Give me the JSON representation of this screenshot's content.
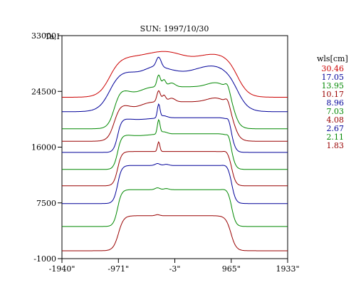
{
  "chart_data": {
    "type": "line",
    "title": "SUN: 1997/10/30",
    "ylabel": "Ta,I",
    "xlabel": "",
    "xlim": [
      -1940,
      1933
    ],
    "ylim": [
      -1000,
      33000
    ],
    "x_tick_values": [
      -1940,
      -971,
      -3,
      965,
      1933
    ],
    "x_tick_labels": [
      "-1940\"",
      "-971\"",
      "-3\"",
      "965\"",
      "1933\""
    ],
    "y_tick_values": [
      -1000,
      7500,
      16000,
      24500,
      33000
    ],
    "y_tick_labels": [
      "-1000",
      "7500",
      "16000",
      "24500",
      "33000"
    ],
    "legend_title": "wls[cm]",
    "legend_placement": "right",
    "series": [
      {
        "name": "30.46",
        "color": "#cc0000",
        "base": 23600,
        "amp": 7000,
        "profile": "wide"
      },
      {
        "name": "17.05",
        "color": "#000099",
        "base": 21400,
        "amp": 7800,
        "profile": "wide_peak"
      },
      {
        "name": "13.95",
        "color": "#008800",
        "base": 18800,
        "amp": 8200,
        "profile": "multi"
      },
      {
        "name": "10.17",
        "color": "#990000",
        "base": 16900,
        "amp": 7700,
        "profile": "multi"
      },
      {
        "name": "8.96",
        "color": "#000099",
        "base": 15200,
        "amp": 7300,
        "profile": "spike"
      },
      {
        "name": "7.03",
        "color": "#008800",
        "base": 12600,
        "amp": 7500,
        "profile": "spike"
      },
      {
        "name": "4.08",
        "color": "#990000",
        "base": 10100,
        "amp": 6700,
        "profile": "spike_small"
      },
      {
        "name": "2.67",
        "color": "#000099",
        "base": 7400,
        "amp": 6100,
        "profile": "flat"
      },
      {
        "name": "2.11",
        "color": "#008800",
        "base": 3900,
        "amp": 5900,
        "profile": "flat"
      },
      {
        "name": "1.83",
        "color": "#990000",
        "base": 200,
        "amp": 5500,
        "profile": "flat_rounded"
      }
    ]
  }
}
